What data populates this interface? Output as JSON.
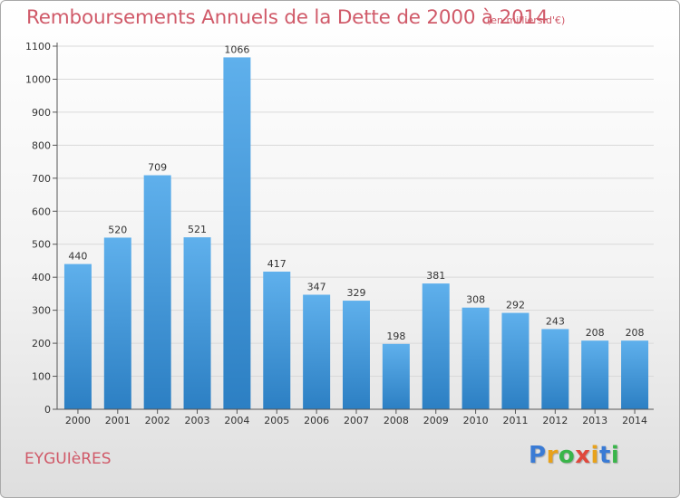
{
  "header": {
    "title": "Remboursements Annuels de la Dette de 2000 à 2014",
    "subtitle": "(en milliers d'€)"
  },
  "footer": {
    "city": "EYGUIèRES",
    "logo": "Proxiti"
  },
  "colors": {
    "bar_top": "#5fb0ec",
    "bar_bottom": "#2c7fc3",
    "title": "#d05a69",
    "grid": "#d9d9d9"
  },
  "chart_data": {
    "type": "bar",
    "title": "Remboursements Annuels de la Dette de 2000 à 2014",
    "subtitle": "(en milliers d'€)",
    "xlabel": "",
    "ylabel": "",
    "categories": [
      "2000",
      "2001",
      "2002",
      "2003",
      "2004",
      "2005",
      "2006",
      "2007",
      "2008",
      "2009",
      "2010",
      "2011",
      "2012",
      "2013",
      "2014"
    ],
    "values": [
      440,
      520,
      709,
      521,
      1066,
      417,
      347,
      329,
      198,
      381,
      308,
      292,
      243,
      208,
      208
    ],
    "ylim": [
      0,
      1100
    ],
    "yticks": [
      0,
      100,
      200,
      300,
      400,
      500,
      600,
      700,
      800,
      900,
      1000,
      1100
    ],
    "grid": true,
    "data_labels": true
  }
}
